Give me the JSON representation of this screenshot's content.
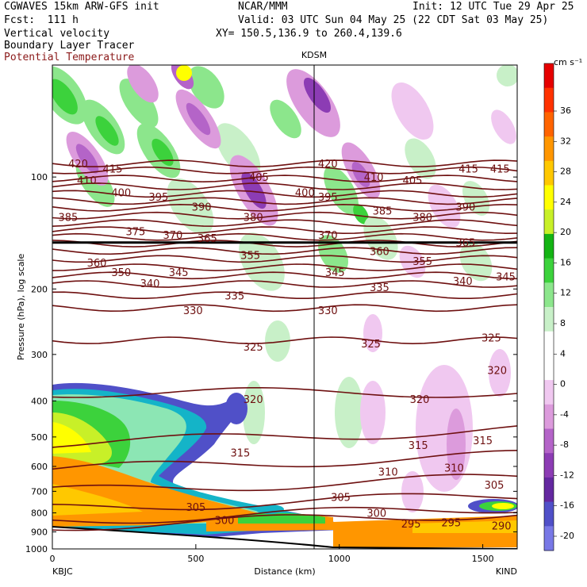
{
  "header": {
    "model": "CGWAVES 15km ARW-GFS init",
    "org": "NCAR/MMM",
    "init": "Init: 12 UTC Tue 29 Apr 25",
    "fcst": "Fcst:  111 h",
    "valid": "Valid: 03 UTC Sun 04 May 25 (22 CDT Sat 03 May 25)",
    "field1": "Vertical velocity",
    "field2": "Boundary Layer Tracer",
    "field3": "Potential Temperature",
    "xy": "XY= 150.5,136.9 to 260.4,139.6"
  },
  "colors": {
    "theta_contour": "#6e1010",
    "pos_scale": [
      "#ffffff",
      "#c8f0c8",
      "#8ce68c",
      "#3cd23c",
      "#14b414",
      "#c8f028",
      "#ffff00",
      "#ffc800",
      "#ff9600",
      "#ff6400",
      "#ff3200",
      "#e60000"
    ],
    "neg_scale": [
      "#f0c8f0",
      "#dc9bdc",
      "#b464c8",
      "#8c3cb4",
      "#6428a0",
      "#5050c8",
      "#7878e6"
    ]
  },
  "chart_data": {
    "type": "heatmap",
    "title": "",
    "xlabel": "Distance (km)",
    "ylabel": "Pressure (hPa), log scale",
    "xlim": [
      0,
      1620
    ],
    "ylim": [
      1000,
      50
    ],
    "x_ticks": [
      0,
      500,
      1000,
      1500
    ],
    "y_ticks": [
      100,
      200,
      300,
      400,
      500,
      600,
      700,
      800,
      900,
      1000
    ],
    "left_station": "KBJC",
    "right_station": "KIND",
    "marker_station": "KDSM",
    "marker_x_km": 935,
    "colorbar": {
      "unit": "cm s⁻¹",
      "labels": [
        36,
        32,
        28,
        24,
        20,
        16,
        12,
        8,
        4,
        0,
        -4,
        -8,
        -12,
        -16,
        -20
      ]
    },
    "theta_labels": [
      {
        "v": "420",
        "x": 90,
        "p": 92
      },
      {
        "v": "415",
        "x": 210,
        "p": 95
      },
      {
        "v": "410",
        "x": 120,
        "p": 102
      },
      {
        "v": "400",
        "x": 240,
        "p": 110
      },
      {
        "v": "395",
        "x": 370,
        "p": 113
      },
      {
        "v": "390",
        "x": 520,
        "p": 120
      },
      {
        "v": "385",
        "x": 55,
        "p": 128
      },
      {
        "v": "375",
        "x": 290,
        "p": 140
      },
      {
        "v": "370",
        "x": 420,
        "p": 143
      },
      {
        "v": "365",
        "x": 540,
        "p": 146
      },
      {
        "v": "360",
        "x": 155,
        "p": 170
      },
      {
        "v": "355",
        "x": 690,
        "p": 162
      },
      {
        "v": "350",
        "x": 240,
        "p": 180
      },
      {
        "v": "345",
        "x": 440,
        "p": 180
      },
      {
        "v": "340",
        "x": 340,
        "p": 193
      },
      {
        "v": "335",
        "x": 635,
        "p": 208
      },
      {
        "v": "330",
        "x": 490,
        "p": 228
      },
      {
        "v": "325",
        "x": 700,
        "p": 286
      },
      {
        "v": "320",
        "x": 700,
        "p": 395
      },
      {
        "v": "315",
        "x": 655,
        "p": 550
      },
      {
        "v": "305",
        "x": 500,
        "p": 770
      },
      {
        "v": "300",
        "x": 600,
        "p": 835
      },
      {
        "v": "380",
        "x": 700,
        "p": 128
      },
      {
        "v": "405",
        "x": 720,
        "p": 100
      },
      {
        "v": "400",
        "x": 880,
        "p": 110
      },
      {
        "v": "420",
        "x": 960,
        "p": 92
      },
      {
        "v": "395",
        "x": 960,
        "p": 113
      },
      {
        "v": "370",
        "x": 960,
        "p": 143
      },
      {
        "v": "345",
        "x": 985,
        "p": 180
      },
      {
        "v": "330",
        "x": 960,
        "p": 228
      },
      {
        "v": "410",
        "x": 1120,
        "p": 100
      },
      {
        "v": "405",
        "x": 1255,
        "p": 102
      },
      {
        "v": "385",
        "x": 1150,
        "p": 123
      },
      {
        "v": "380",
        "x": 1290,
        "p": 128
      },
      {
        "v": "360",
        "x": 1140,
        "p": 158
      },
      {
        "v": "355",
        "x": 1290,
        "p": 168
      },
      {
        "v": "335",
        "x": 1140,
        "p": 198
      },
      {
        "v": "325",
        "x": 1110,
        "p": 280
      },
      {
        "v": "320",
        "x": 1280,
        "p": 395
      },
      {
        "v": "315",
        "x": 1275,
        "p": 525
      },
      {
        "v": "310",
        "x": 1170,
        "p": 620
      },
      {
        "v": "310",
        "x": 1400,
        "p": 605
      },
      {
        "v": "305",
        "x": 1005,
        "p": 725
      },
      {
        "v": "300",
        "x": 1130,
        "p": 800
      },
      {
        "v": "295",
        "x": 1250,
        "p": 855
      },
      {
        "v": "295",
        "x": 1390,
        "p": 848
      },
      {
        "v": "290",
        "x": 1565,
        "p": 865
      },
      {
        "v": "305",
        "x": 1540,
        "p": 672
      },
      {
        "v": "415",
        "x": 1450,
        "p": 95
      },
      {
        "v": "415",
        "x": 1560,
        "p": 95
      },
      {
        "v": "390",
        "x": 1440,
        "p": 120
      },
      {
        "v": "365",
        "x": 1440,
        "p": 150
      },
      {
        "v": "340",
        "x": 1430,
        "p": 190
      },
      {
        "v": "345",
        "x": 1580,
        "p": 185
      },
      {
        "v": "325",
        "x": 1530,
        "p": 270
      },
      {
        "v": "320",
        "x": 1550,
        "p": 330
      },
      {
        "v": "315",
        "x": 1500,
        "p": 510
      }
    ]
  }
}
